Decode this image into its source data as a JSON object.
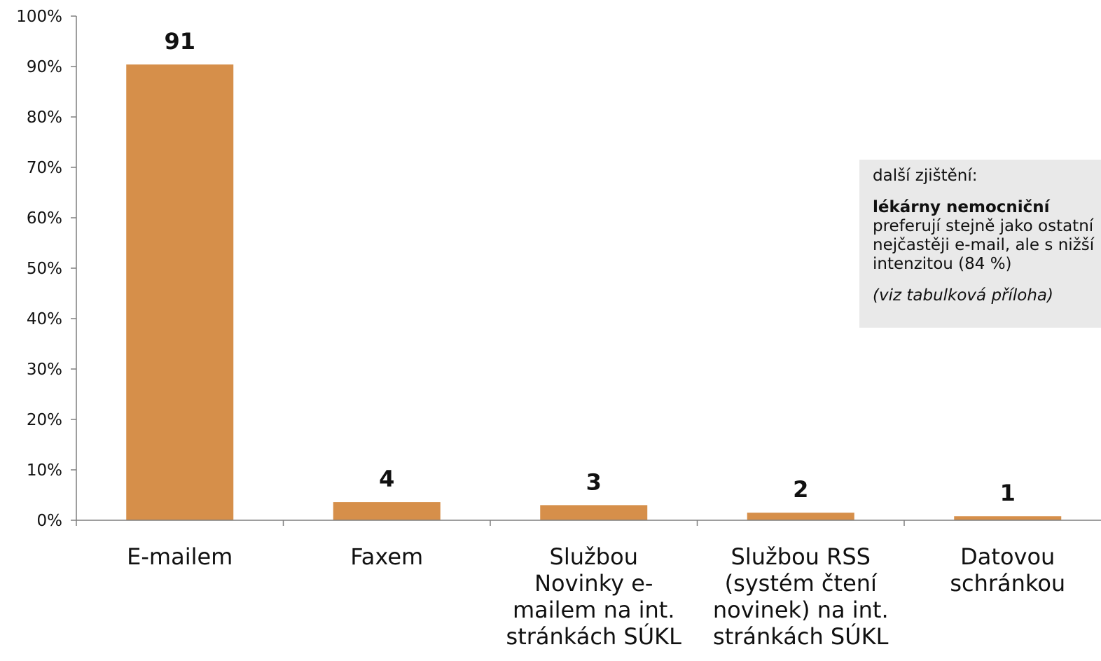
{
  "chart_data": {
    "type": "bar",
    "categories": [
      [
        "E-mailem"
      ],
      [
        "Faxem"
      ],
      [
        "Službou",
        "Novinky e-",
        "mailem na int.",
        "stránkách SÚKL"
      ],
      [
        "Službou RSS",
        "(systém čtení",
        "novinek) na int.",
        "stránkách SÚKL"
      ],
      [
        "Datovou",
        "schránkou"
      ]
    ],
    "values": [
      91,
      4,
      3,
      2,
      1
    ],
    "bar_heights_percent": [
      90.4,
      3.6,
      3.0,
      1.5,
      0.8
    ],
    "data_labels": [
      "91",
      "4",
      "3",
      "2",
      "1"
    ],
    "ylim": [
      0,
      100
    ],
    "yticks": [
      "0%",
      "10%",
      "20%",
      "30%",
      "40%",
      "50%",
      "60%",
      "70%",
      "80%",
      "90%",
      "100%"
    ],
    "bar_color": "#d68f4a",
    "axis_color": "#7f7f7f",
    "grid": false
  },
  "note": {
    "heading": "další zjištění:",
    "bold_title": "lékárny nemocniční",
    "lines": [
      "preferují stejně jako ostatní",
      "nejčastěji e-mail, ale s nižší",
      "intenzitou (84 %)"
    ],
    "reference": "(viz tabulková příloha)"
  }
}
